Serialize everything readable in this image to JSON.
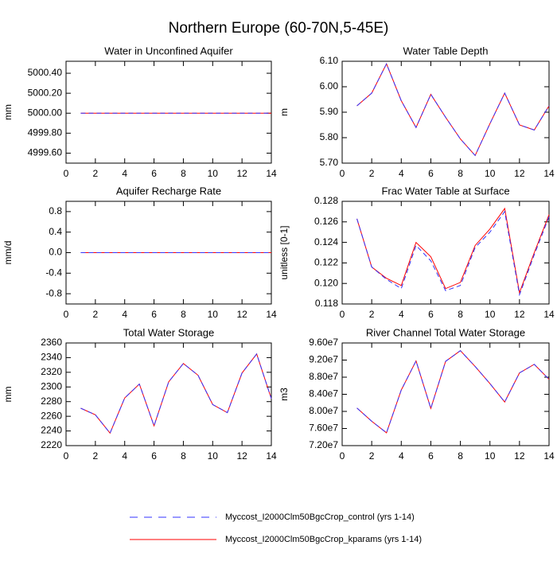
{
  "title": "Northern Europe (60-70N,5-45E)",
  "legend": [
    {
      "name": "Myccost_I2000Clm50BgcCrop_control (yrs 1-14)",
      "color": "#3333ff",
      "dashed": true
    },
    {
      "name": "Myccost_I2000Clm50BgcCrop_kparams (yrs 1-14)",
      "color": "#ff0000",
      "dashed": false
    }
  ],
  "chart_data": [
    {
      "type": "line",
      "title": "Water in Unconfined Aquifer",
      "y_label": "mm",
      "x": [
        1,
        2,
        3,
        4,
        5,
        6,
        7,
        8,
        9,
        10,
        11,
        12,
        13,
        14
      ],
      "xlim": [
        0,
        14
      ],
      "xticks": [
        0,
        2,
        4,
        6,
        8,
        10,
        12,
        14
      ],
      "ylim": [
        4999.5,
        5000.52
      ],
      "yticks": [
        {
          "value": 4999.6,
          "label": "4999.60"
        },
        {
          "value": 4999.8,
          "label": "4999.80"
        },
        {
          "value": 5000.0,
          "label": "5000.00"
        },
        {
          "value": 5000.2,
          "label": "5000.20"
        },
        {
          "value": 5000.4,
          "label": "5000.40"
        }
      ],
      "series": [
        {
          "values": [
            5000,
            5000,
            5000,
            5000,
            5000,
            5000,
            5000,
            5000,
            5000,
            5000,
            5000,
            5000,
            5000,
            5000
          ]
        },
        {
          "values": [
            5000,
            5000,
            5000,
            5000,
            5000,
            5000,
            5000,
            5000,
            5000,
            5000,
            5000,
            5000,
            5000,
            5000
          ]
        }
      ]
    },
    {
      "type": "line",
      "title": "Water Table Depth",
      "y_label": "m",
      "x": [
        1,
        2,
        3,
        4,
        5,
        6,
        7,
        8,
        9,
        10,
        11,
        12,
        13,
        14
      ],
      "xlim": [
        0,
        14
      ],
      "xticks": [
        0,
        2,
        4,
        6,
        8,
        10,
        12,
        14
      ],
      "ylim": [
        5.7,
        6.1
      ],
      "yticks": [
        {
          "value": 5.7,
          "label": "5.70"
        },
        {
          "value": 5.8,
          "label": "5.80"
        },
        {
          "value": 5.9,
          "label": "5.90"
        },
        {
          "value": 6.0,
          "label": "6.00"
        },
        {
          "value": 6.1,
          "label": "6.10"
        }
      ],
      "series": [
        {
          "values": [
            5.925,
            5.975,
            6.09,
            5.945,
            5.84,
            5.97,
            5.88,
            5.795,
            5.73,
            5.855,
            5.975,
            5.85,
            5.83,
            5.925
          ]
        },
        {
          "values": [
            5.925,
            5.975,
            6.09,
            5.945,
            5.84,
            5.97,
            5.88,
            5.795,
            5.73,
            5.855,
            5.975,
            5.85,
            5.83,
            5.925
          ]
        }
      ]
    },
    {
      "type": "line",
      "title": "Aquifer Recharge Rate",
      "y_label": "mm/d",
      "x": [
        1,
        2,
        3,
        4,
        5,
        6,
        7,
        8,
        9,
        10,
        11,
        12,
        13,
        14
      ],
      "xlim": [
        0,
        14
      ],
      "xticks": [
        0,
        2,
        4,
        6,
        8,
        10,
        12,
        14
      ],
      "ylim": [
        -1,
        1
      ],
      "yticks": [
        -0.8,
        -0.4,
        {
          "value": 0,
          "label": "0.0"
        },
        0.4,
        0.8
      ],
      "series": [
        {
          "values": [
            0,
            0,
            0,
            0,
            0,
            0,
            0,
            0,
            0,
            0,
            0,
            0,
            0,
            0
          ]
        },
        {
          "values": [
            0,
            0,
            0,
            0,
            0,
            0,
            0,
            0,
            0,
            0,
            0,
            0,
            0,
            0
          ]
        }
      ]
    },
    {
      "type": "line",
      "title": "Frac Water Table at Surface",
      "y_label": "unitless [0-1]",
      "x": [
        1,
        2,
        3,
        4,
        5,
        6,
        7,
        8,
        9,
        10,
        11,
        12,
        13,
        14
      ],
      "xlim": [
        0,
        14
      ],
      "xticks": [
        0,
        2,
        4,
        6,
        8,
        10,
        12,
        14
      ],
      "ylim": [
        0.118,
        0.128
      ],
      "yticks": [
        0.118,
        {
          "value": 0.12,
          "label": "0.120"
        },
        0.122,
        0.124,
        0.126,
        0.128
      ],
      "series": [
        {
          "values": [
            0.1263,
            0.1216,
            0.1204,
            0.1195,
            0.1237,
            0.1222,
            0.1193,
            0.1198,
            0.1235,
            0.125,
            0.127,
            0.1189,
            0.1228,
            0.1265
          ]
        },
        {
          "values": [
            0.1263,
            0.1216,
            0.1205,
            0.1198,
            0.124,
            0.1226,
            0.1195,
            0.1201,
            0.1237,
            0.1253,
            0.1273,
            0.1191,
            0.123,
            0.1267
          ]
        }
      ]
    },
    {
      "type": "line",
      "title": "Total Water Storage",
      "y_label": "mm",
      "x": [
        1,
        2,
        3,
        4,
        5,
        6,
        7,
        8,
        9,
        10,
        11,
        12,
        13,
        14
      ],
      "xlim": [
        0,
        14
      ],
      "xticks": [
        0,
        2,
        4,
        6,
        8,
        10,
        12,
        14
      ],
      "ylim": [
        2220,
        2360
      ],
      "yticks": [
        2220,
        2240,
        2260,
        2280,
        2300,
        2320,
        2340,
        2360
      ],
      "series": [
        {
          "values": [
            2271,
            2262,
            2237,
            2285,
            2304,
            2247,
            2307,
            2332,
            2316,
            2276,
            2265,
            2319,
            2345,
            2284
          ]
        },
        {
          "values": [
            2271,
            2262,
            2237,
            2285,
            2304,
            2247,
            2307,
            2332,
            2316,
            2276,
            2265,
            2319,
            2345,
            2284
          ]
        }
      ]
    },
    {
      "type": "line",
      "title": "River Channel Total Water Storage",
      "y_label": "m3",
      "x": [
        1,
        2,
        3,
        4,
        5,
        6,
        7,
        8,
        9,
        10,
        11,
        12,
        13,
        14
      ],
      "xlim": [
        0,
        14
      ],
      "xticks": [
        0,
        2,
        4,
        6,
        8,
        10,
        12,
        14
      ],
      "ylim": [
        72000000,
        96000000
      ],
      "yticks": [
        {
          "value": 72000000,
          "label": "7.20e7"
        },
        {
          "value": 76000000,
          "label": "7.60e7"
        },
        {
          "value": 80000000,
          "label": "8.00e7"
        },
        {
          "value": 84000000,
          "label": "8.40e7"
        },
        {
          "value": 88000000,
          "label": "8.80e7"
        },
        {
          "value": 92000000,
          "label": "9.20e7"
        },
        {
          "value": 96000000,
          "label": "9.60e7"
        }
      ],
      "series": [
        {
          "values": [
            80800000,
            77700000,
            75000000,
            85000000,
            91800000,
            80700000,
            91700000,
            94200000,
            90500000,
            86500000,
            82200000,
            89000000,
            91000000,
            87500000
          ]
        },
        {
          "values": [
            80800000,
            77700000,
            75000000,
            85000000,
            91800000,
            80700000,
            91700000,
            94200000,
            90500000,
            86500000,
            82200000,
            89000000,
            91000000,
            87500000
          ]
        }
      ]
    }
  ]
}
